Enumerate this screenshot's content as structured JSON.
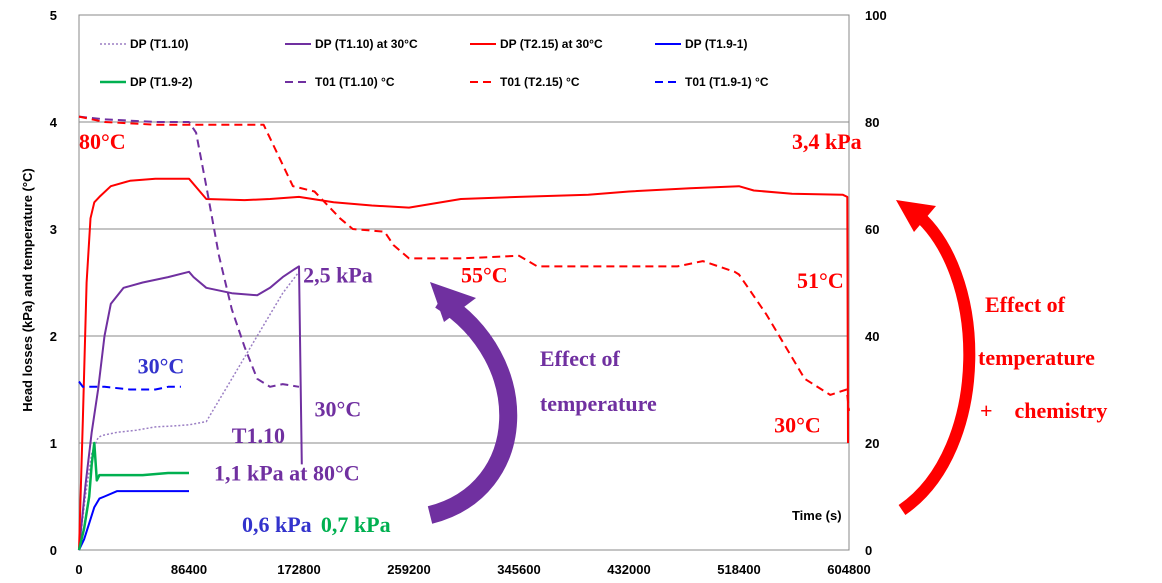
{
  "chart_data": {
    "type": "line",
    "xlabel": "Time (s)",
    "ylabel": "Head losses (kPa) and temperature (°C)",
    "x_ticks": [
      "0",
      "86400",
      "172800",
      "259200",
      "345600",
      "432000",
      "518400",
      "604800"
    ],
    "y_ticks_left": [
      "0",
      "1",
      "2",
      "3",
      "4",
      "5"
    ],
    "y_ticks_right": [
      "0",
      "20",
      "40",
      "60",
      "80",
      "100"
    ],
    "xlim": [
      0,
      604800
    ],
    "ylim_left": [
      0,
      5
    ],
    "ylim_right": [
      0,
      100
    ],
    "grid": "horizontal",
    "legend_position": "top",
    "series": [
      {
        "name": "DP (T1.10)",
        "axis": "left",
        "color": "#9b7fc4",
        "style": "dotted",
        "width": 1.5,
        "x": [
          0,
          5000,
          10000,
          15000,
          18000,
          30000,
          45000,
          60000,
          75000,
          86400,
          100000,
          120000,
          140000,
          160000,
          172800
        ],
        "y": [
          0,
          0.5,
          0.9,
          1.05,
          1.07,
          1.1,
          1.12,
          1.15,
          1.16,
          1.17,
          1.2,
          1.6,
          2.0,
          2.4,
          2.6
        ]
      },
      {
        "name": "DP (T1.10) at 30°C",
        "axis": "left",
        "color": "#7030a0",
        "style": "solid",
        "width": 2,
        "x": [
          0,
          5000,
          10000,
          15000,
          20000,
          25000,
          35000,
          50000,
          70000,
          86400,
          90000,
          100000,
          120000,
          140000,
          150000,
          160000,
          170000,
          172800,
          175000
        ],
        "y": [
          0,
          0.6,
          1.1,
          1.5,
          2.0,
          2.3,
          2.45,
          2.5,
          2.55,
          2.6,
          2.55,
          2.45,
          2.4,
          2.38,
          2.45,
          2.55,
          2.63,
          2.65,
          0.8
        ]
      },
      {
        "name": "DP (T2.15) at 30°C",
        "axis": "left",
        "color": "#ff0000",
        "style": "solid",
        "width": 2,
        "x": [
          0,
          3000,
          6000,
          9000,
          12000,
          16000,
          25000,
          40000,
          60000,
          86400,
          95000,
          100000,
          130000,
          150000,
          172800,
          200000,
          230000,
          259200,
          300000,
          345600,
          400000,
          432000,
          480000,
          518400,
          530000,
          560000,
          600000,
          603500,
          604000
        ],
        "y": [
          0,
          1.2,
          2.5,
          3.1,
          3.25,
          3.3,
          3.4,
          3.45,
          3.47,
          3.47,
          3.35,
          3.28,
          3.27,
          3.28,
          3.3,
          3.25,
          3.22,
          3.2,
          3.28,
          3.3,
          3.32,
          3.35,
          3.38,
          3.4,
          3.36,
          3.33,
          3.32,
          3.3,
          1.0
        ]
      },
      {
        "name": "DP (T1.9-1)",
        "axis": "left",
        "color": "#0000ff",
        "style": "solid",
        "width": 2,
        "x": [
          0,
          4000,
          8000,
          12000,
          16000,
          20000,
          30000,
          40000,
          60000,
          86400
        ],
        "y": [
          0,
          0.1,
          0.25,
          0.4,
          0.48,
          0.5,
          0.55,
          0.55,
          0.55,
          0.55
        ]
      },
      {
        "name": "DP (T1.9-2)",
        "axis": "left",
        "color": "#00b050",
        "style": "solid",
        "width": 2.5,
        "x": [
          0,
          4000,
          8000,
          10000,
          12000,
          14000,
          16000,
          20000,
          30000,
          50000,
          70000,
          86400
        ],
        "y": [
          0,
          0.2,
          0.5,
          0.8,
          1.0,
          0.65,
          0.7,
          0.7,
          0.7,
          0.7,
          0.72,
          0.72
        ]
      },
      {
        "name": "T01 (T1.10) °C",
        "axis": "right",
        "color": "#7030a0",
        "style": "dashed",
        "width": 2,
        "x": [
          0,
          20000,
          60000,
          86400,
          92000,
          100000,
          110000,
          120000,
          130000,
          140000,
          150000,
          160000,
          172800
        ],
        "y": [
          81,
          80.5,
          80,
          80,
          78,
          68,
          55,
          45,
          38,
          32,
          30.5,
          31,
          30.5
        ]
      },
      {
        "name": "T01 (T2.15) °C",
        "axis": "right",
        "color": "#ff0000",
        "style": "dashed",
        "width": 2,
        "x": [
          0,
          20000,
          60000,
          100000,
          145000,
          150000,
          160000,
          168000,
          185000,
          205000,
          215000,
          240000,
          247000,
          259200,
          300000,
          345600,
          360000,
          400000,
          432000,
          470000,
          490000,
          515000,
          518400,
          540000,
          555000,
          570000,
          590000,
          603000,
          604800
        ],
        "y": [
          81,
          80,
          79.5,
          79.5,
          79.5,
          77,
          72,
          68,
          67,
          62,
          60,
          59.5,
          57,
          54.5,
          54.5,
          55,
          53,
          53,
          53,
          53,
          54,
          52,
          51.5,
          44,
          38,
          32,
          29,
          30,
          26
        ]
      },
      {
        "name": "T01 (T1.9-1) °C",
        "axis": "right",
        "color": "#0000ff",
        "style": "dashed",
        "width": 2,
        "x": [
          0,
          3000,
          20000,
          40000,
          60000,
          70000,
          80000
        ],
        "y": [
          31.5,
          30.5,
          30.5,
          30,
          30,
          30.5,
          30.5
        ]
      }
    ],
    "annotations": [
      {
        "text": "80°C",
        "color": "#ff0000",
        "size": 22,
        "x": 0,
        "y": 3.75
      },
      {
        "text": "3,4 kPa",
        "color": "#ff0000",
        "size": 22,
        "x": 560000,
        "y": 3.75
      },
      {
        "text": "2,5 kPa",
        "color": "#7030a0",
        "size": 22,
        "x": 176000,
        "y": 2.5
      },
      {
        "text": "55°C",
        "color": "#ff0000",
        "size": 22,
        "x": 300000,
        "y": 2.5
      },
      {
        "text": "51°C",
        "color": "#ff0000",
        "size": 22,
        "x": 564000,
        "y": 2.45
      },
      {
        "text": "30°C",
        "color": "#3333cc",
        "size": 22,
        "x": 46000,
        "y": 1.65
      },
      {
        "text": "30°C",
        "color": "#7030a0",
        "size": 22,
        "x": 185000,
        "y": 1.25
      },
      {
        "text": "T1.10",
        "color": "#7030a0",
        "size": 22,
        "x": 120000,
        "y": 1.0
      },
      {
        "text": "30°C",
        "color": "#ff0000",
        "size": 22,
        "x": 546000,
        "y": 1.1
      },
      {
        "text": "1,1 kPa at 80°C",
        "color": "#7030a0",
        "size": 22,
        "x": 106000,
        "y": 0.65
      },
      {
        "text": "0,6 kPa",
        "color": "#3333cc",
        "size": 22,
        "x": 128000,
        "y": 0.17
      },
      {
        "text": "0,7 kPa",
        "color": "#00b050",
        "size": 22,
        "x": 190000,
        "y": 0.17
      },
      {
        "text": "Effect of",
        "color": "#7030a0",
        "size": 22,
        "x": 362000,
        "y": 1.72
      },
      {
        "text": "temperature",
        "color": "#7030a0",
        "size": 22,
        "x": 362000,
        "y": 1.3
      },
      {
        "text": "Time (s)",
        "color": "#000000",
        "size": 13,
        "x": 560000,
        "y": 0.28
      }
    ],
    "outside_annotations": [
      "Effect of",
      "temperature",
      "+    chemistry"
    ]
  }
}
